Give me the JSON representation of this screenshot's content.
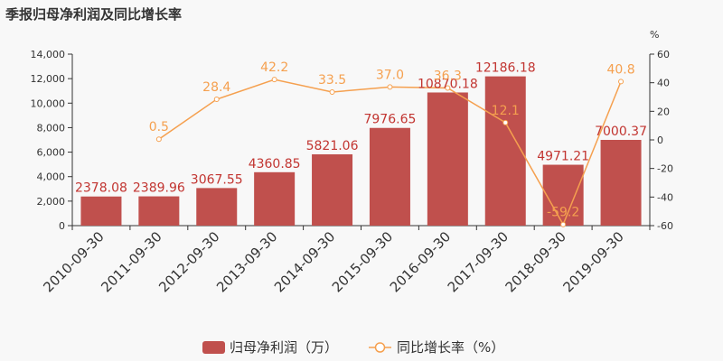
{
  "chart_data": {
    "type": "bar",
    "title": "季报归母净利润及同比增长率",
    "categories": [
      "2010-09-30",
      "2011-09-30",
      "2012-09-30",
      "2013-09-30",
      "2014-09-30",
      "2015-09-30",
      "2016-09-30",
      "2017-09-30",
      "2018-09-30",
      "2019-09-30"
    ],
    "series": [
      {
        "name": "归母净利润（万）",
        "type": "bar",
        "axis": "left",
        "color": "#c0504d",
        "values": [
          2378.08,
          2389.96,
          3067.55,
          4360.85,
          5821.06,
          7976.65,
          10870.18,
          12186.18,
          4971.21,
          7000.37
        ],
        "labels": [
          "2378.08",
          "2389.96",
          "3067.55",
          "4360.85",
          "5821.06",
          "7976.65",
          "10870.18",
          "12186.18",
          "4971.21",
          "7000.37"
        ]
      },
      {
        "name": "同比增长率（%）",
        "type": "line",
        "axis": "right",
        "color": "#f5a04f",
        "values": [
          null,
          0.5,
          28.4,
          42.2,
          33.5,
          37.0,
          36.3,
          12.1,
          -59.2,
          40.8
        ],
        "labels": [
          "",
          "0.5",
          "28.4",
          "42.2",
          "33.5",
          "37.0",
          "36.3",
          "12.1",
          "-59.2",
          "40.8"
        ]
      }
    ],
    "y_left": {
      "min": 0,
      "max": 14000,
      "ticks": [
        0,
        2000,
        4000,
        6000,
        8000,
        10000,
        12000,
        14000
      ],
      "tick_labels": [
        "0",
        "2,000",
        "4,000",
        "6,000",
        "8,000",
        "10,000",
        "12,000",
        "14,000"
      ]
    },
    "y_right": {
      "label": "%",
      "min": -60,
      "max": 60,
      "ticks": [
        -60,
        -40,
        -20,
        0,
        20,
        40,
        60
      ],
      "tick_labels": [
        "-60",
        "-40",
        "-20",
        "0",
        "20",
        "40",
        "60"
      ]
    },
    "grid": false,
    "legend_position": "bottom-center",
    "legend": [
      "归母净利润（万）",
      "同比增长率（%）"
    ]
  }
}
